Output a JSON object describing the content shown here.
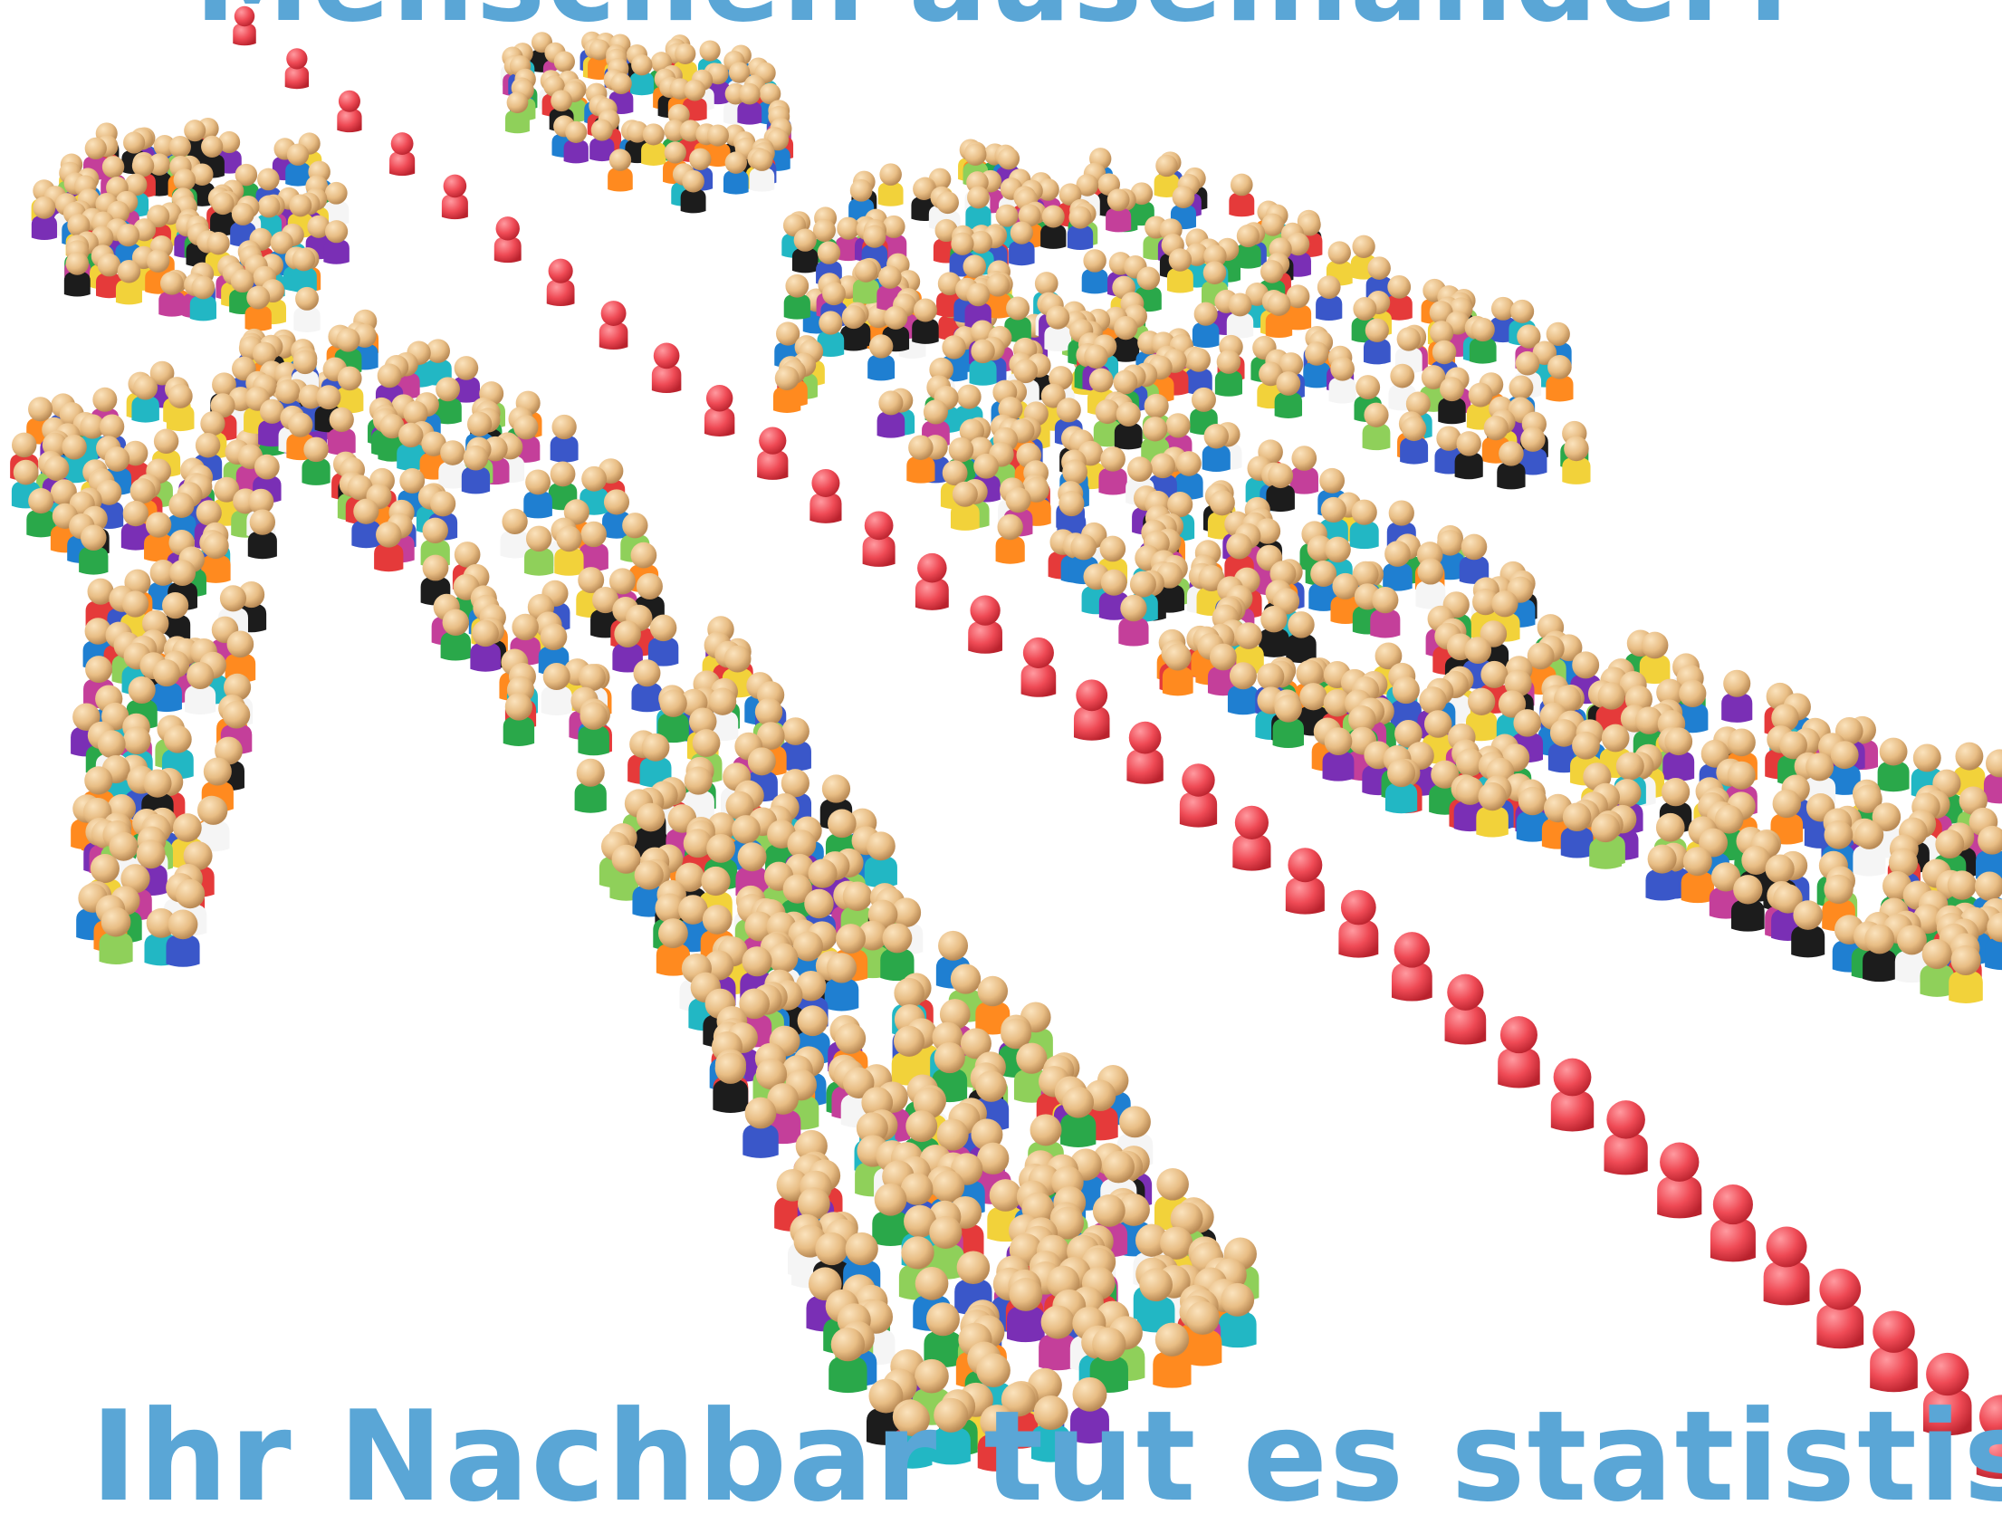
{
  "poster": {
    "headline_top": "Menschen auseinander?",
    "headline_bottom": "Ihr Nachbar tut es statistisch",
    "text_color": "#5aa6d6",
    "background_color": "#ffffff"
  },
  "scene": {
    "subject": "Figures arranged into a large person shape separated by a red chain",
    "separator_color": "#ef4a55",
    "skin_tone": "#e8bd84",
    "shirt_colors": [
      "#1f7fd1",
      "#7a2fb5",
      "#2aa84a",
      "#e53a3a",
      "#1c1c1c",
      "#f2d23a",
      "#22b7c4",
      "#ff8a1f",
      "#c43f9a",
      "#8fd05a",
      "#3a57c9",
      "#f5f5f5"
    ]
  }
}
